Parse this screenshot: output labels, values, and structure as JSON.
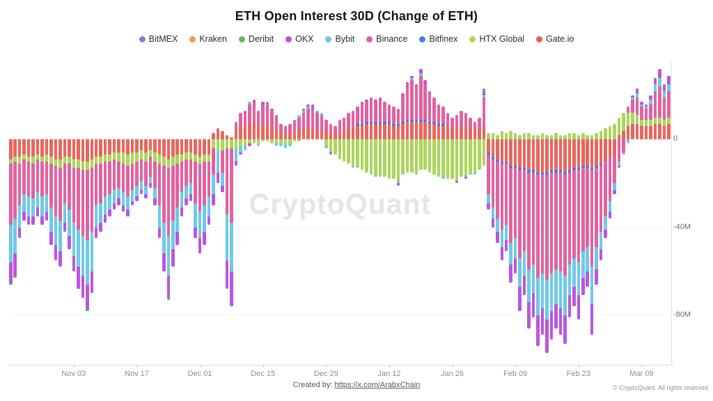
{
  "header": {
    "title": "ETH Open Interest 30D (Change of ETH)"
  },
  "legend": [
    {
      "label": "BitMEX",
      "color": "#8678ea"
    },
    {
      "label": "Kraken",
      "color": "#f39a4d"
    },
    {
      "label": "Deribit",
      "color": "#5cb85f"
    },
    {
      "label": "OKX",
      "color": "#c050dd"
    },
    {
      "label": "Bybit",
      "color": "#67c6e6"
    },
    {
      "label": "Binance",
      "color": "#e0609f"
    },
    {
      "label": "Bitfinex",
      "color": "#4b7be5"
    },
    {
      "label": "HTX Global",
      "color": "#b0d65a"
    },
    {
      "label": "Gate.io",
      "color": "#e85c58"
    }
  ],
  "watermark": "CryptoQuant",
  "footer": {
    "created_by_label": "Created by:",
    "created_by_link": "https://x.com/ArabxChain",
    "copyright": "© CryptoQuant. All rights reserved"
  },
  "chart_data": {
    "type": "bar",
    "stacked": true,
    "title": "ETH Open Interest 30D (Change of ETH)",
    "y_unit_suffix": "M",
    "ylim": [
      -102.5,
      35.5
    ],
    "grid": true,
    "legend_position": "top",
    "y_ticks": [
      {
        "label": "0",
        "value": 0
      },
      {
        "label": "-40M",
        "value": -40
      },
      {
        "label": "-80M",
        "value": -80
      }
    ],
    "x_ticks": [
      {
        "label": "Nov 03",
        "day": 14
      },
      {
        "label": "Nov 17",
        "day": 28
      },
      {
        "label": "Dec 01",
        "day": 42
      },
      {
        "label": "Dec 15",
        "day": 56
      },
      {
        "label": "Dec 29",
        "day": 70
      },
      {
        "label": "Jan 12",
        "day": 84
      },
      {
        "label": "Jan 26",
        "day": 98
      },
      {
        "label": "Feb 09",
        "day": 112
      },
      {
        "label": "Feb 23",
        "day": 126
      },
      {
        "label": "Mar 09",
        "day": 140
      }
    ],
    "stack_order": [
      "Gate.io",
      "HTX Global",
      "Bitfinex",
      "Binance",
      "Bybit",
      "OKX",
      "Deribit"
    ],
    "stack_colors": [
      "#ec655c",
      "#abd65a",
      "#4b7be5",
      "#e2629f",
      "#6fc9e8",
      "#bb55e0",
      "#54b05a"
    ],
    "values_unit": "millions of ETH (estimated from chart)",
    "bars": [
      [
        -9,
        -2,
        0,
        -28,
        -17,
        -9,
        -1
      ],
      [
        -8,
        -2,
        0,
        -26,
        -16,
        -10,
        -1
      ],
      [
        -8,
        -3,
        0,
        -19,
        -10,
        -5
      ],
      [
        -7,
        -2,
        0,
        -16,
        -8,
        -4
      ],
      [
        -8,
        -2,
        0,
        -16,
        -9,
        -4
      ],
      [
        -8,
        -3,
        0,
        -16,
        -8,
        -4
      ],
      [
        -7,
        -2,
        0,
        -15,
        -7,
        -4
      ],
      [
        -8,
        -2,
        0,
        -16,
        -9,
        -4
      ],
      [
        -7,
        -3,
        0,
        -15,
        -8,
        -4
      ],
      [
        -8,
        -3,
        0,
        -20,
        -11,
        -6
      ],
      [
        -9,
        -3,
        0,
        -23,
        -13,
        -7
      ],
      [
        -9,
        -4,
        0,
        -24,
        -14,
        -7
      ],
      [
        -8,
        -3,
        0,
        -18,
        -9,
        -4
      ],
      [
        -8,
        -3,
        0,
        -21,
        -12,
        -6
      ],
      [
        -9,
        -4,
        0,
        -25,
        -15,
        -7
      ],
      [
        -9,
        -4,
        0,
        -28,
        -17,
        -10
      ],
      [
        -10,
        -4,
        0,
        -30,
        -18,
        -10
      ],
      [
        -10,
        -4,
        0,
        -32,
        -20,
        -11,
        -1
      ],
      [
        -9,
        -4,
        0,
        -29,
        -18,
        -10
      ],
      [
        -8,
        -3,
        0,
        -19,
        -10,
        -5
      ],
      [
        -8,
        -3,
        0,
        -18,
        -9,
        -4
      ],
      [
        -7,
        -3,
        0,
        -16,
        -8,
        -4
      ],
      [
        -7,
        -3,
        0,
        -15,
        -7,
        -3
      ],
      [
        -6,
        -3,
        0,
        -14,
        -6,
        -3
      ],
      [
        -6,
        -4,
        0,
        -12,
        -5,
        -3
      ],
      [
        -6,
        -5,
        0,
        -13,
        -6,
        -3
      ],
      [
        -7,
        -5,
        0,
        -14,
        -6,
        -3
      ],
      [
        -6,
        -5,
        0,
        -12,
        -5,
        -2
      ],
      [
        -6,
        -4,
        0,
        -11,
        -5,
        -2
      ],
      [
        -5,
        -4,
        0,
        -10,
        -4,
        -2
      ],
      [
        -6,
        -4,
        0,
        -11,
        -4,
        -2
      ],
      [
        -5,
        -3,
        0,
        -9,
        -3,
        -2
      ],
      [
        -6,
        -4,
        0,
        -12,
        -5,
        -3
      ],
      [
        -7,
        -4,
        0,
        -19,
        -10,
        -5
      ],
      [
        -8,
        -4,
        0,
        -26,
        -14,
        -8
      ],
      [
        -9,
        -4,
        0,
        -31,
        -18,
        -10,
        -1
      ],
      [
        -8,
        -4,
        0,
        -25,
        -13,
        -8
      ],
      [
        -7,
        -4,
        0,
        -20,
        -11,
        -6
      ],
      [
        -7,
        -3,
        0,
        -14,
        -7,
        -4
      ],
      [
        -6,
        -3,
        0,
        -12,
        -6,
        -3
      ],
      [
        -6,
        -3,
        0,
        -11,
        -5,
        -3
      ],
      [
        -7,
        -3,
        0,
        -19,
        -11,
        -5
      ],
      [
        -8,
        -3,
        0,
        -22,
        -12,
        -7
      ],
      [
        -7,
        -3,
        0,
        -20,
        -12,
        -6
      ],
      [
        -7,
        -3,
        0,
        -16,
        -9,
        -4
      ],
      [
        3,
        -4,
        0,
        -12,
        -9,
        -5
      ],
      [
        4,
        -5,
        0,
        1,
        -10,
        -5
      ],
      [
        4,
        -5,
        0,
        -10,
        -6,
        -3
      ],
      [
        2,
        -4,
        0,
        -30,
        -21,
        -12,
        -1
      ],
      [
        1,
        -4,
        0,
        -34,
        -22,
        -16
      ],
      [
        5,
        -4,
        0,
        3,
        -6,
        -2
      ],
      [
        6,
        -3,
        0,
        6,
        -3,
        -1
      ],
      [
        6,
        -3,
        0,
        6,
        -2,
        1
      ],
      [
        7,
        -2,
        0,
        9,
        1,
        -1
      ],
      [
        7,
        -2,
        0,
        10,
        0,
        1
      ],
      [
        6,
        -2,
        0,
        7,
        -1,
        0
      ],
      [
        7,
        -1,
        0,
        9,
        0,
        1
      ],
      [
        7,
        -1,
        0,
        10,
        0,
        0
      ],
      [
        6,
        -2,
        0,
        8,
        0,
        0
      ],
      [
        5,
        -2,
        0,
        6,
        -1,
        0
      ],
      [
        4,
        -2,
        0,
        3,
        -1,
        0
      ],
      [
        3,
        -2,
        0,
        3,
        -2,
        0
      ],
      [
        3,
        -2,
        0,
        4,
        -1,
        0
      ],
      [
        4,
        -1,
        0,
        5,
        0,
        0
      ],
      [
        4,
        -1,
        0,
        6,
        1,
        0
      ],
      [
        5,
        0,
        0,
        7,
        1,
        1
      ],
      [
        5,
        0,
        0,
        9,
        1,
        1
      ],
      [
        5,
        0,
        0,
        9,
        0,
        2
      ],
      [
        4,
        0,
        0,
        8,
        1,
        0
      ],
      [
        4,
        0,
        0,
        7,
        1,
        0
      ],
      [
        4,
        -3,
        0,
        5,
        -1,
        0
      ],
      [
        3,
        -5,
        0,
        4,
        -1,
        -1
      ],
      [
        3,
        -7,
        0,
        3,
        0,
        0
      ],
      [
        4,
        -9,
        0,
        5,
        0,
        0
      ],
      [
        4,
        -10,
        0,
        6,
        0,
        0
      ],
      [
        5,
        -11,
        0,
        7,
        0,
        0
      ],
      [
        5,
        -12,
        0,
        8,
        -1,
        0
      ],
      [
        6,
        -13,
        1,
        8,
        0,
        0
      ],
      [
        6,
        -14,
        1,
        9,
        0,
        1
      ],
      [
        7,
        -15,
        1,
        9,
        0,
        1
      ],
      [
        7,
        -16,
        1,
        10,
        0,
        1
      ],
      [
        7,
        -16,
        1,
        9,
        -1,
        1
      ],
      [
        7,
        -17,
        1,
        10,
        0,
        1
      ],
      [
        7,
        -17,
        1,
        9,
        0,
        0
      ],
      [
        7,
        -18,
        1,
        8,
        0,
        0
      ],
      [
        6,
        -18,
        1,
        8,
        0,
        0
      ],
      [
        6,
        -19,
        1,
        7,
        -1,
        -1
      ],
      [
        7,
        -16,
        1,
        12,
        0,
        1
      ],
      [
        8,
        -15,
        1,
        16,
        0,
        1
      ],
      [
        8,
        -15,
        1,
        18,
        1,
        1
      ],
      [
        8,
        -16,
        1,
        15,
        0,
        1
      ],
      [
        8,
        -14,
        1,
        20,
        1,
        2
      ],
      [
        8,
        -14,
        1,
        16,
        0,
        2
      ],
      [
        7,
        -15,
        1,
        13,
        0,
        1
      ],
      [
        7,
        -16,
        1,
        11,
        0,
        0
      ],
      [
        6,
        -17,
        1,
        9,
        0,
        0
      ],
      [
        6,
        -17,
        1,
        8,
        -1,
        0
      ],
      [
        6,
        -18,
        0,
        6,
        0,
        0
      ],
      [
        5,
        -18,
        0,
        5,
        0,
        0
      ],
      [
        5,
        -19,
        0,
        6,
        0,
        -1
      ],
      [
        6,
        -17,
        0,
        7,
        0,
        0
      ],
      [
        6,
        -16,
        0,
        6,
        -1,
        -1
      ],
      [
        5,
        -16,
        0,
        5,
        0,
        0
      ],
      [
        4,
        -15,
        0,
        4,
        -1,
        0
      ],
      [
        5,
        -14,
        0,
        5,
        0,
        0
      ],
      [
        6,
        -12,
        0,
        13,
        1,
        2,
        1
      ],
      [
        -6,
        3,
        -1,
        -18,
        -4,
        -3
      ],
      [
        -8,
        3,
        -1,
        -22,
        -5,
        -4
      ],
      [
        -9,
        2,
        -1,
        -26,
        -6,
        -5
      ],
      [
        -10,
        4,
        -1,
        -30,
        -8,
        -6
      ],
      [
        -10,
        3,
        -1,
        -28,
        -7,
        -5
      ],
      [
        -12,
        4,
        -1,
        -34,
        -10,
        -8
      ],
      [
        -12,
        3,
        -1,
        -32,
        -9,
        -7
      ],
      [
        -13,
        2,
        -1,
        -40,
        -13,
        -11
      ],
      [
        -13,
        3,
        -1,
        -37,
        -11,
        -9
      ],
      [
        -14,
        3,
        -1,
        -44,
        -15,
        -12
      ],
      [
        -14,
        2,
        -1,
        -42,
        -13,
        -11
      ],
      [
        -15,
        2,
        -1,
        -47,
        -17,
        -14
      ],
      [
        -15,
        3,
        -1,
        -45,
        -16,
        -12
      ],
      [
        -15,
        2,
        -1,
        -48,
        -18,
        -15
      ],
      [
        -14,
        2,
        -1,
        -46,
        -17,
        -13
      ],
      [
        -14,
        3,
        -1,
        -44,
        -16,
        -11
      ],
      [
        -14,
        2,
        -1,
        -45,
        -17,
        -12
      ],
      [
        -15,
        2,
        -1,
        -46,
        -18,
        -13
      ],
      [
        -14,
        3,
        -1,
        -42,
        -14,
        -10
      ],
      [
        -13,
        3,
        -1,
        -40,
        -13,
        -9
      ],
      [
        -13,
        2,
        -1,
        -42,
        -15,
        -11
      ],
      [
        -12,
        3,
        -1,
        -38,
        -12,
        -8
      ],
      [
        -12,
        2,
        -1,
        -36,
        -11,
        -7
      ],
      [
        -13,
        2,
        -1,
        -44,
        -17,
        -14
      ],
      [
        -12,
        3,
        -1,
        -36,
        -10,
        -7
      ],
      [
        -11,
        4,
        -1,
        -30,
        -8,
        -5
      ],
      [
        -10,
        5,
        0,
        -25,
        -6,
        -4
      ],
      [
        -8,
        6,
        0,
        -20,
        -5,
        -3
      ],
      [
        -6,
        7,
        0,
        -14,
        -3,
        -2
      ],
      [
        2,
        8,
        0,
        -10,
        -2,
        -1
      ],
      [
        4,
        8,
        0,
        -6,
        -1,
        0
      ],
      [
        6,
        6,
        0,
        3,
        -2,
        0
      ],
      [
        7,
        5,
        0,
        6,
        1,
        1
      ],
      [
        7,
        4,
        0,
        8,
        2,
        2
      ],
      [
        6,
        3,
        0,
        6,
        1,
        1
      ],
      [
        6,
        3,
        0,
        5,
        1,
        1
      ],
      [
        6,
        3,
        0,
        7,
        2,
        2
      ],
      [
        7,
        3,
        0,
        12,
        3,
        3
      ],
      [
        7,
        3,
        0,
        14,
        4,
        4
      ],
      [
        6,
        3,
        0,
        10,
        3,
        3
      ],
      [
        7,
        3,
        0,
        12,
        3,
        4
      ]
    ]
  }
}
